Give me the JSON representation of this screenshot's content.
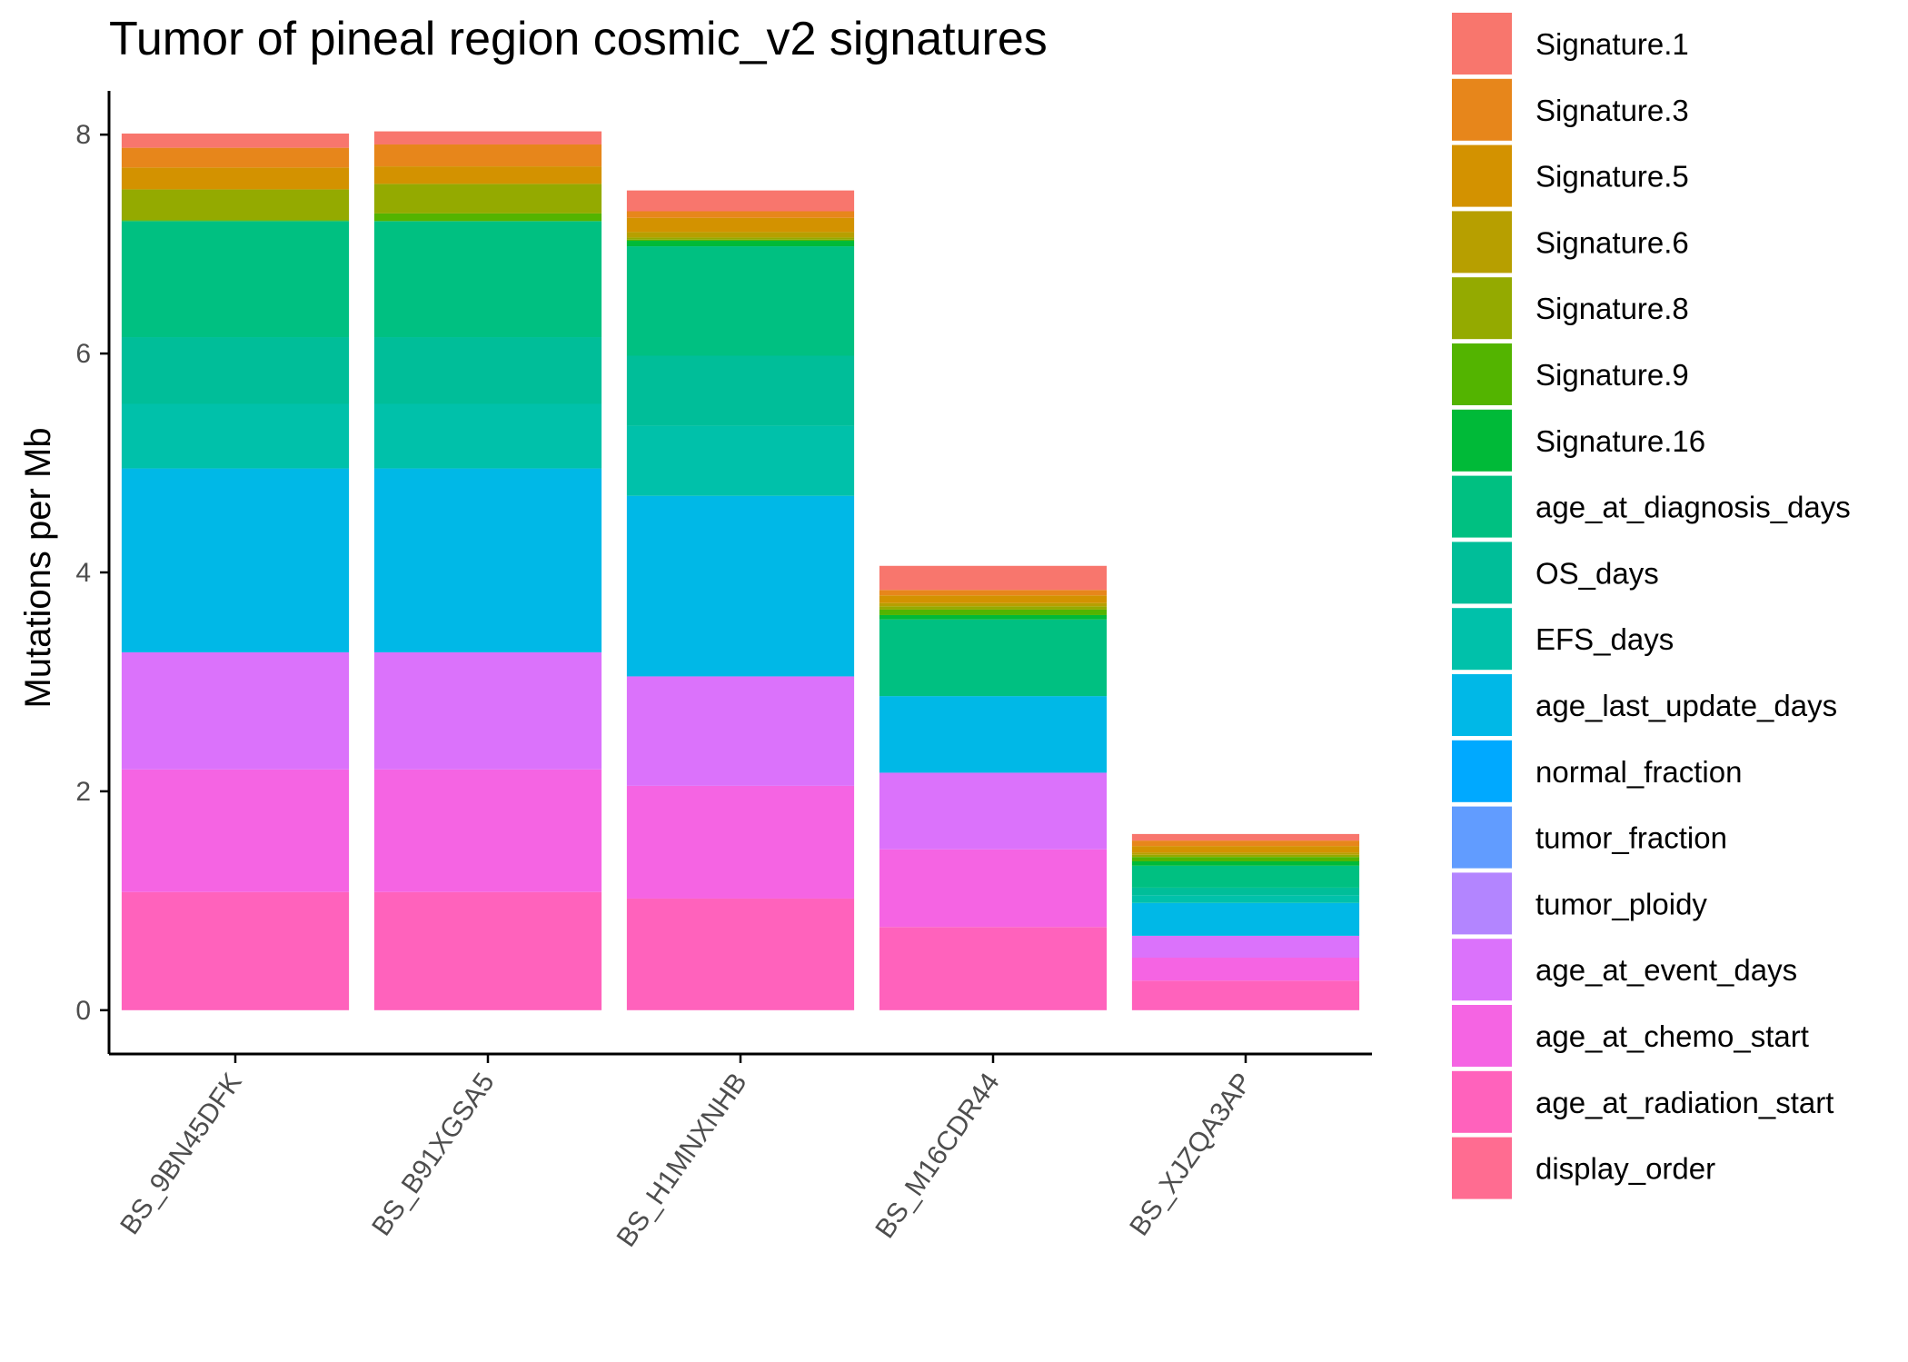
{
  "chart_data": {
    "type": "bar",
    "stacked": true,
    "title": "Tumor of pineal region cosmic_v2 signatures",
    "xlabel": "",
    "ylabel": "Mutations per Mb",
    "ylim": [
      -0.4,
      8.4
    ],
    "yticks": [
      0,
      2,
      4,
      6,
      8
    ],
    "grid": false,
    "legend_position": "right",
    "categories": [
      "BS_9BN45DFK",
      "BS_B91XGSA5",
      "BS_H1MNXNHB",
      "BS_M16CDR44",
      "BS_XJZQA3AP"
    ],
    "series": [
      {
        "name": "display_order",
        "color": "#FF6C91",
        "values": [
          0,
          0,
          0,
          0,
          0
        ]
      },
      {
        "name": "age_at_radiation_start",
        "color": "#FF62BC",
        "values": [
          1.08,
          1.08,
          1.02,
          0.76,
          0.27
        ]
      },
      {
        "name": "age_at_chemo_start",
        "color": "#F564E3",
        "values": [
          1.12,
          1.12,
          1.03,
          0.71,
          0.21
        ]
      },
      {
        "name": "age_at_event_days",
        "color": "#DB72FB",
        "values": [
          1.07,
          1.07,
          1.0,
          0.7,
          0.2
        ]
      },
      {
        "name": "tumor_ploidy",
        "color": "#B385FF",
        "values": [
          0,
          0,
          0,
          0,
          0
        ]
      },
      {
        "name": "tumor_fraction",
        "color": "#619CFF",
        "values": [
          0,
          0,
          0,
          0,
          0
        ]
      },
      {
        "name": "normal_fraction",
        "color": "#00A9FF",
        "values": [
          0,
          0,
          0,
          0,
          0
        ]
      },
      {
        "name": "age_last_update_days",
        "color": "#00B8E7",
        "values": [
          1.68,
          1.68,
          1.65,
          0.7,
          0.3
        ]
      },
      {
        "name": "EFS_days",
        "color": "#00C1AA",
        "values": [
          0.59,
          0.59,
          0.64,
          0,
          0.07
        ]
      },
      {
        "name": "OS_days",
        "color": "#00BE99",
        "values": [
          0.61,
          0.61,
          0.64,
          0,
          0.07
        ]
      },
      {
        "name": "age_at_diagnosis_days",
        "color": "#00C081",
        "values": [
          1.06,
          1.06,
          1.0,
          0.7,
          0.2
        ]
      },
      {
        "name": "Signature.16",
        "color": "#00BA38",
        "values": [
          0,
          0,
          0.05,
          0.04,
          0.04
        ]
      },
      {
        "name": "Signature.9",
        "color": "#53B400",
        "values": [
          0.01,
          0.07,
          0.01,
          0.05,
          0.04
        ]
      },
      {
        "name": "Signature.8",
        "color": "#94AA00",
        "values": [
          0.28,
          0.27,
          0.02,
          0.03,
          0.02
        ]
      },
      {
        "name": "Signature.6",
        "color": "#B79F00",
        "values": [
          0,
          0,
          0.05,
          0.03,
          0.02
        ]
      },
      {
        "name": "Signature.5",
        "color": "#D39200",
        "values": [
          0.2,
          0.16,
          0.13,
          0.07,
          0.06
        ]
      },
      {
        "name": "Signature.3",
        "color": "#E7861B",
        "values": [
          0.18,
          0.2,
          0.06,
          0.05,
          0.05
        ]
      },
      {
        "name": "Signature.1",
        "color": "#F8766D",
        "values": [
          0.13,
          0.12,
          0.19,
          0.22,
          0.06
        ]
      }
    ],
    "legend_order": [
      "Signature.1",
      "Signature.3",
      "Signature.5",
      "Signature.6",
      "Signature.8",
      "Signature.9",
      "Signature.16",
      "age_at_diagnosis_days",
      "OS_days",
      "EFS_days",
      "age_last_update_days",
      "normal_fraction",
      "tumor_fraction",
      "tumor_ploidy",
      "age_at_event_days",
      "age_at_chemo_start",
      "age_at_radiation_start",
      "display_order"
    ]
  }
}
